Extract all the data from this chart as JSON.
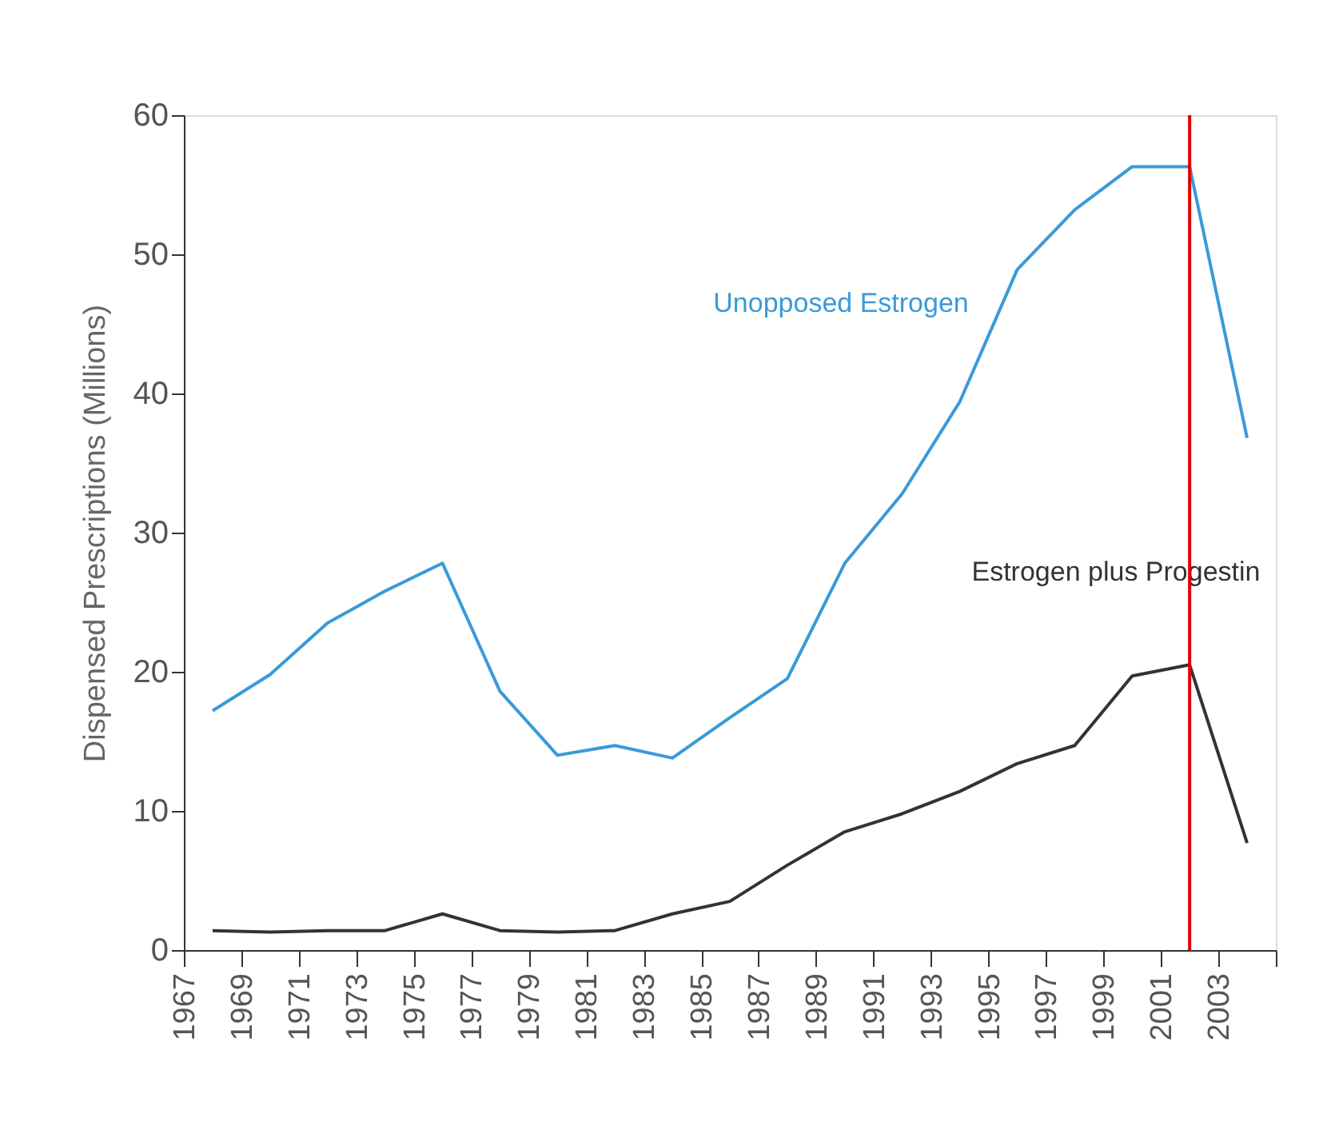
{
  "chart_data": {
    "type": "line",
    "ylabel": "Dispensed Prescriptions (Millions)",
    "x": [
      1968,
      1970,
      1972,
      1974,
      1976,
      1978,
      1980,
      1982,
      1984,
      1986,
      1988,
      1990,
      1992,
      1994,
      1996,
      1998,
      2000,
      2002,
      2004
    ],
    "series": [
      {
        "name": "Unopposed Estrogen",
        "color": "#3a9ad9",
        "values": [
          17.2,
          19.8,
          23.5,
          25.8,
          27.8,
          18.6,
          14.0,
          14.7,
          13.8,
          16.7,
          19.5,
          27.8,
          32.8,
          39.4,
          48.9,
          53.2,
          56.3,
          56.3,
          36.8
        ]
      },
      {
        "name": "Estrogen plus Progestin",
        "color": "#333333",
        "values": [
          1.4,
          1.3,
          1.4,
          1.4,
          2.6,
          1.4,
          1.3,
          1.4,
          2.6,
          3.5,
          6.1,
          8.5,
          9.8,
          11.4,
          13.4,
          14.7,
          19.7,
          20.5,
          7.7
        ]
      }
    ],
    "ref_lines": [
      {
        "axis": "x",
        "value": 2002,
        "color": "#e00000"
      }
    ],
    "xlim": [
      1967,
      2005
    ],
    "xticks": [
      1967,
      1969,
      1971,
      1973,
      1975,
      1977,
      1979,
      1981,
      1983,
      1985,
      1987,
      1989,
      1991,
      1993,
      1995,
      1997,
      1999,
      2001,
      2003,
      {
        "value": 2005,
        "label": null
      }
    ],
    "ylim": [
      0,
      60
    ],
    "yticks": [
      0,
      10,
      20,
      30,
      40,
      50,
      60
    ],
    "grid": false,
    "marker": "none",
    "line_style": "solid"
  }
}
